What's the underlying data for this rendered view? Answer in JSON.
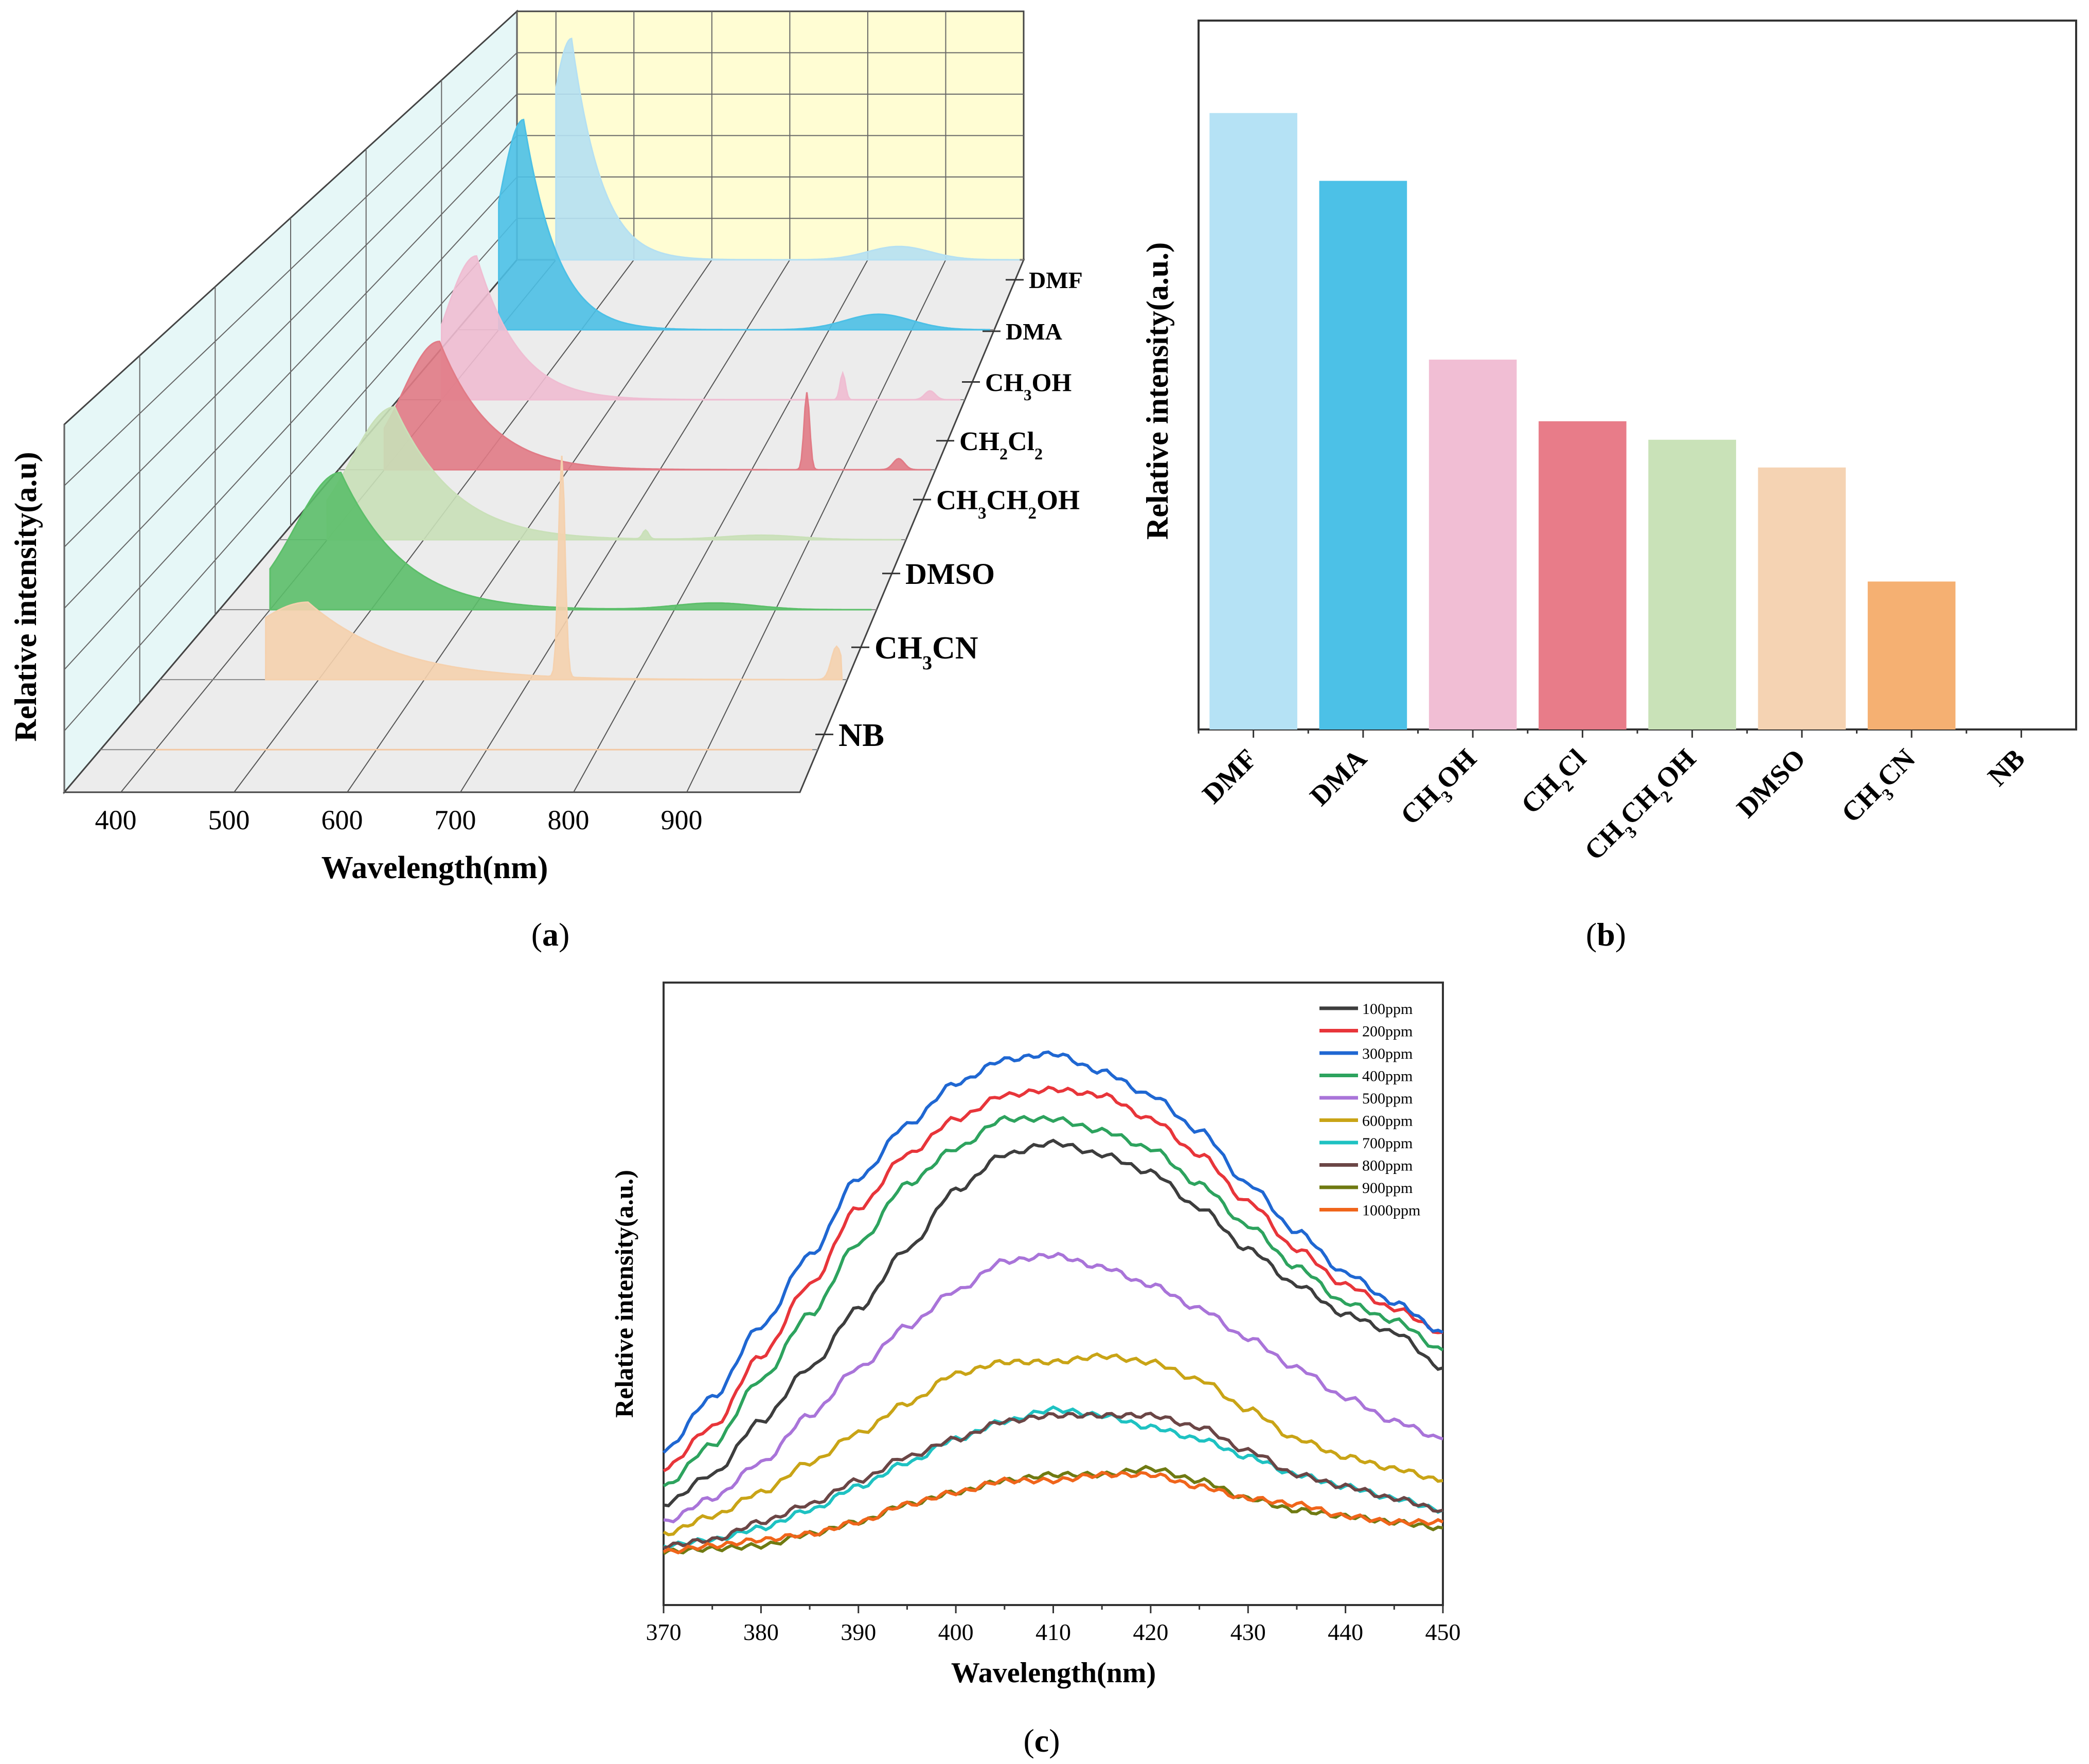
{
  "panels": {
    "a": {
      "caption_open": "(",
      "caption_letter": "a",
      "caption_close": ")",
      "xlabel": "Wavelength(nm)",
      "ylabel": "Relative intensity(a.u)",
      "ticks": [
        "400",
        "500",
        "600",
        "700",
        "800",
        "900"
      ],
      "series_labels": [
        {
          "main": "DMF",
          "sub": []
        },
        {
          "main": "DMA",
          "sub": []
        },
        {
          "main": "CH3OH",
          "parts": [
            "CH",
            "3",
            "OH"
          ]
        },
        {
          "main": "CH2Cl2",
          "parts": [
            "CH",
            "2",
            "Cl",
            "2",
            ""
          ]
        },
        {
          "main": "CH3CH2OH",
          "parts": [
            "CH",
            "3",
            "CH",
            "2",
            "OH"
          ]
        },
        {
          "main": "DMSO",
          "sub": []
        },
        {
          "main": "CH3CN",
          "parts": [
            "CH",
            "3",
            "CN"
          ]
        },
        {
          "main": "NB",
          "sub": []
        }
      ]
    },
    "b": {
      "caption_open": "(",
      "caption_letter": "b",
      "caption_close": ")",
      "ylabel": "Relative intensity(a.u.)"
    },
    "c": {
      "caption_open": "(",
      "caption_letter": "c",
      "caption_close": ")",
      "xlabel": "Wavelength(nm)",
      "ylabel": "Relative intensity(a.u.)"
    }
  },
  "chart_data": [
    {
      "panel": "a",
      "type": "area",
      "xlabel": "Wavelength(nm)",
      "ylabel": "Relative intensity(a.u)",
      "xlim": [
        350,
        1000
      ],
      "xticks": [
        400,
        500,
        600,
        700,
        800,
        900
      ],
      "grid": true,
      "series": [
        {
          "name": "DMF",
          "color": "#b5e0f2",
          "peak_x": 420,
          "peak_y": 1.0,
          "width": 28,
          "start": 400,
          "secondary": [
            [
              840,
              0.06,
              40
            ]
          ]
        },
        {
          "name": "DMA",
          "color": "#4cc0e6",
          "peak_x": 430,
          "peak_y": 0.95,
          "width": 30,
          "start": 400,
          "secondary": [
            [
              860,
              0.07,
              40
            ]
          ]
        },
        {
          "name": "CH3OH",
          "color": "#efbdd2",
          "peak_x": 440,
          "peak_y": 0.65,
          "width": 35,
          "start": 400,
          "secondary": [
            [
              860,
              0.12,
              3
            ],
            [
              960,
              0.04,
              6
            ]
          ]
        },
        {
          "name": "CH2Cl2",
          "color": "#e17b86",
          "peak_x": 460,
          "peak_y": 0.58,
          "width": 40,
          "start": 400,
          "secondary": [
            [
              860,
              0.35,
              3
            ],
            [
              960,
              0.05,
              6
            ]
          ]
        },
        {
          "name": "CH3CH2OH",
          "color": "#c9e0b8",
          "peak_x": 470,
          "peak_y": 0.6,
          "width": 45,
          "start": 400,
          "secondary": [
            [
              730,
              0.04,
              3
            ],
            [
              850,
              0.02,
              40
            ]
          ]
        },
        {
          "name": "DMSO",
          "color": "#5cbf6a",
          "peak_x": 470,
          "peak_y": 0.62,
          "width": 45,
          "start": 400,
          "secondary": [
            [
              840,
              0.03,
              40
            ]
          ]
        },
        {
          "name": "CH3CN",
          "color": "#f5d1ae",
          "peak_x": 490,
          "peak_y": 0.35,
          "width": 60,
          "start": 450,
          "secondary": [
            [
              730,
              1.0,
              3
            ],
            [
              990,
              0.15,
              5
            ]
          ]
        },
        {
          "name": "NB",
          "color": "#f2c8a4",
          "peak_x": 500,
          "peak_y": 0.0,
          "width": 10,
          "start": 400,
          "secondary": []
        }
      ]
    },
    {
      "panel": "b",
      "type": "bar",
      "ylabel": "Relative intensity(a.u.)",
      "categories": [
        "DMF",
        "DMA",
        "CH3OH",
        "CH2Cl",
        "CH3CH2OH",
        "DMSO",
        "CH3CN",
        "NB"
      ],
      "category_parts": [
        [
          "DMF"
        ],
        [
          "DMA"
        ],
        [
          "CH",
          "3",
          "OH"
        ],
        [
          "CH",
          "2",
          "Cl"
        ],
        [
          "CH",
          "3",
          "CH",
          "2",
          "OH"
        ],
        [
          "DMSO"
        ],
        [
          "CH",
          "3",
          "CN"
        ],
        [
          "NB"
        ]
      ],
      "values": [
        1.0,
        0.89,
        0.6,
        0.5,
        0.47,
        0.425,
        0.24,
        0.0
      ],
      "colors": [
        "#b5e2f5",
        "#4cc1e7",
        "#f1bed4",
        "#e87c89",
        "#c9e2b8",
        "#f5d3b3",
        "#f5b072",
        "#ffffff"
      ],
      "ylim": [
        0,
        1.15
      ],
      "grid": false
    },
    {
      "panel": "c",
      "type": "line",
      "xlabel": "Wavelength(nm)",
      "ylabel": "Relative intensity(a.u.)",
      "xlim": [
        370,
        450
      ],
      "xticks": [
        370,
        380,
        390,
        400,
        410,
        420,
        430,
        440,
        450
      ],
      "ylim": [
        0,
        1.05
      ],
      "legend_position": "top-right",
      "grid": false,
      "x": [
        370,
        375,
        380,
        385,
        390,
        395,
        400,
        405,
        410,
        415,
        420,
        425,
        430,
        435,
        440,
        445,
        450
      ],
      "series": [
        {
          "name": "100ppm",
          "color": "#3d3d3d",
          "values": [
            0.17,
            0.22,
            0.31,
            0.4,
            0.5,
            0.6,
            0.7,
            0.76,
            0.78,
            0.76,
            0.73,
            0.67,
            0.6,
            0.54,
            0.49,
            0.46,
            0.4
          ]
        },
        {
          "name": "200ppm",
          "color": "#e8353a",
          "values": [
            0.23,
            0.3,
            0.42,
            0.54,
            0.67,
            0.76,
            0.82,
            0.86,
            0.87,
            0.86,
            0.82,
            0.76,
            0.68,
            0.6,
            0.54,
            0.5,
            0.46
          ]
        },
        {
          "name": "300ppm",
          "color": "#1f67d2",
          "values": [
            0.26,
            0.35,
            0.47,
            0.59,
            0.72,
            0.81,
            0.88,
            0.92,
            0.93,
            0.9,
            0.86,
            0.8,
            0.71,
            0.63,
            0.56,
            0.51,
            0.46
          ]
        },
        {
          "name": "400ppm",
          "color": "#2da35e",
          "values": [
            0.2,
            0.27,
            0.38,
            0.49,
            0.61,
            0.71,
            0.77,
            0.82,
            0.82,
            0.8,
            0.77,
            0.71,
            0.64,
            0.57,
            0.51,
            0.48,
            0.43
          ]
        },
        {
          "name": "500ppm",
          "color": "#a974d9",
          "values": [
            0.14,
            0.18,
            0.24,
            0.32,
            0.4,
            0.47,
            0.53,
            0.58,
            0.59,
            0.57,
            0.54,
            0.5,
            0.45,
            0.4,
            0.35,
            0.31,
            0.28
          ]
        },
        {
          "name": "600ppm",
          "color": "#c9a416",
          "values": [
            0.12,
            0.15,
            0.19,
            0.24,
            0.29,
            0.34,
            0.39,
            0.41,
            0.41,
            0.42,
            0.41,
            0.38,
            0.33,
            0.28,
            0.25,
            0.23,
            0.21
          ]
        },
        {
          "name": "700ppm",
          "color": "#1ec2c2",
          "values": [
            0.1,
            0.11,
            0.13,
            0.16,
            0.2,
            0.24,
            0.28,
            0.31,
            0.33,
            0.32,
            0.3,
            0.28,
            0.25,
            0.22,
            0.2,
            0.18,
            0.16
          ]
        },
        {
          "name": "800ppm",
          "color": "#6b4646",
          "values": [
            0.1,
            0.11,
            0.14,
            0.17,
            0.21,
            0.25,
            0.28,
            0.31,
            0.32,
            0.32,
            0.32,
            0.3,
            0.26,
            0.22,
            0.2,
            0.18,
            0.16
          ]
        },
        {
          "name": "900ppm",
          "color": "#6f7a12",
          "values": [
            0.09,
            0.095,
            0.1,
            0.12,
            0.14,
            0.17,
            0.19,
            0.21,
            0.22,
            0.22,
            0.23,
            0.21,
            0.18,
            0.16,
            0.15,
            0.14,
            0.13
          ]
        },
        {
          "name": "1000ppm",
          "color": "#f0651b",
          "values": [
            0.09,
            0.1,
            0.11,
            0.12,
            0.14,
            0.17,
            0.19,
            0.21,
            0.21,
            0.22,
            0.22,
            0.2,
            0.18,
            0.17,
            0.15,
            0.14,
            0.14
          ]
        }
      ]
    }
  ]
}
